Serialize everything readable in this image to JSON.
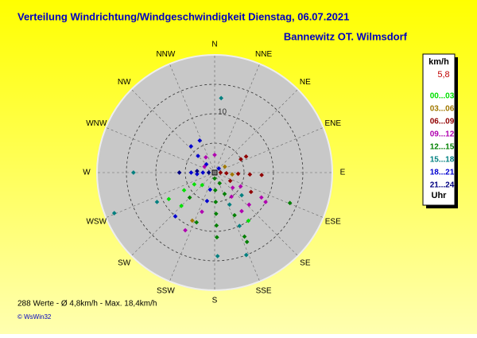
{
  "chart_data": {
    "type": "polar-scatter",
    "title": "Verteilung Windrichtung/Windgeschwindigkeit  Dienstag, 06.07.2021",
    "subtitle": "Bannewitz OT. Wilmsdorf",
    "directions": [
      "N",
      "NNE",
      "NE",
      "ENE",
      "E",
      "ESE",
      "SE",
      "SSE",
      "S",
      "SSW",
      "SW",
      "WSW",
      "W",
      "WNW",
      "NW",
      "NNW"
    ],
    "rlim": [
      0,
      20
    ],
    "rgrid": [
      5,
      10,
      15
    ],
    "rticks": [
      10
    ],
    "legend_title": "km/h",
    "current": "5,8",
    "legend_footer": "Uhr",
    "groups": [
      {
        "name": "00...03",
        "color": "#00e000"
      },
      {
        "name": "03...06",
        "color": "#a07800"
      },
      {
        "name": "06...09",
        "color": "#900000"
      },
      {
        "name": "09...12",
        "color": "#b000b0"
      },
      {
        "name": "12...15",
        "color": "#008000"
      },
      {
        "name": "15...18",
        "color": "#008080"
      },
      {
        "name": "18...21",
        "color": "#0000d0"
      },
      {
        "name": "21...24",
        "color": "#000080"
      }
    ],
    "points": [
      {
        "dir": 155,
        "speed": 2,
        "group": 4
      },
      {
        "dir": 155,
        "speed": 4,
        "group": 4
      },
      {
        "dir": 155,
        "speed": 6,
        "group": 5
      },
      {
        "dir": 155,
        "speed": 8,
        "group": 4
      },
      {
        "dir": 155,
        "speed": 10,
        "group": 5
      },
      {
        "dir": 155,
        "speed": 12,
        "group": 4
      },
      {
        "dir": 155,
        "speed": 13,
        "group": 4
      },
      {
        "dir": 159,
        "speed": 15,
        "group": 5
      },
      {
        "dir": 178,
        "speed": 3,
        "group": 4
      },
      {
        "dir": 178,
        "speed": 5,
        "group": 4
      },
      {
        "dir": 178,
        "speed": 7,
        "group": 4
      },
      {
        "dir": 178,
        "speed": 9,
        "group": 4
      },
      {
        "dir": 178,
        "speed": 11,
        "group": 4
      },
      {
        "dir": 178,
        "speed": 14.2,
        "group": 5
      },
      {
        "dir": 195,
        "speed": 3,
        "group": 6
      },
      {
        "dir": 195,
        "speed": 5,
        "group": 6
      },
      {
        "dir": 198,
        "speed": 7,
        "group": 3
      },
      {
        "dir": 200,
        "speed": 9,
        "group": 4
      },
      {
        "dir": 118,
        "speed": 3,
        "group": 2
      },
      {
        "dir": 118,
        "speed": 5,
        "group": 3
      },
      {
        "dir": 118,
        "speed": 7,
        "group": 2
      },
      {
        "dir": 118,
        "speed": 9,
        "group": 3
      },
      {
        "dir": 120,
        "speed": 10,
        "group": 3
      },
      {
        "dir": 112,
        "speed": 13.8,
        "group": 4
      },
      {
        "dir": 130,
        "speed": 4,
        "group": 3
      },
      {
        "dir": 130,
        "speed": 6,
        "group": 5
      },
      {
        "dir": 133,
        "speed": 8,
        "group": 3
      },
      {
        "dir": 93,
        "speed": 2,
        "group": 2
      },
      {
        "dir": 93,
        "speed": 4,
        "group": 2
      },
      {
        "dir": 93,
        "speed": 6,
        "group": 2
      },
      {
        "dir": 93,
        "speed": 8,
        "group": 2
      },
      {
        "dir": 96,
        "speed": 3,
        "group": 1
      },
      {
        "dir": 63,
        "speed": 5,
        "group": 2
      },
      {
        "dir": 63,
        "speed": 6,
        "group": 2
      },
      {
        "dir": 270,
        "speed": 2,
        "group": 6
      },
      {
        "dir": 270,
        "speed": 4,
        "group": 6
      },
      {
        "dir": 270,
        "speed": 6,
        "group": 7
      },
      {
        "dir": 270,
        "speed": 13.8,
        "group": 5
      },
      {
        "dir": 265,
        "speed": 3,
        "group": 6
      },
      {
        "dir": 275,
        "speed": 3,
        "group": 7
      },
      {
        "dir": 248,
        "speed": 18.4,
        "group": 5
      },
      {
        "dir": 240,
        "speed": 4,
        "group": 0
      },
      {
        "dir": 240,
        "speed": 6,
        "group": 0
      },
      {
        "dir": 240,
        "speed": 9,
        "group": 0
      },
      {
        "dir": 243,
        "speed": 11,
        "group": 5
      },
      {
        "dir": 225,
        "speed": 3,
        "group": 0
      },
      {
        "dir": 225,
        "speed": 6,
        "group": 4
      },
      {
        "dir": 225,
        "speed": 8,
        "group": 0
      },
      {
        "dir": 222,
        "speed": 10,
        "group": 6
      },
      {
        "dir": 315,
        "speed": 2,
        "group": 6
      },
      {
        "dir": 315,
        "speed": 4,
        "group": 6
      },
      {
        "dir": 318,
        "speed": 6,
        "group": 6
      },
      {
        "dir": 330,
        "speed": 3,
        "group": 3
      },
      {
        "dir": 335,
        "speed": 6,
        "group": 6
      },
      {
        "dir": 5,
        "speed": 12.7,
        "group": 5
      },
      {
        "dir": 0,
        "speed": 3,
        "group": 3
      },
      {
        "dir": 145,
        "speed": 5,
        "group": 3
      },
      {
        "dir": 145,
        "speed": 8,
        "group": 3
      },
      {
        "dir": 145,
        "speed": 10,
        "group": 0
      },
      {
        "dir": 207,
        "speed": 11,
        "group": 3
      },
      {
        "dir": 205,
        "speed": 9,
        "group": 1
      },
      {
        "dir": 45,
        "speed": 1,
        "group": 6
      },
      {
        "dir": 90,
        "speed": 1,
        "group": 2
      },
      {
        "dir": 180,
        "speed": 1,
        "group": 4
      },
      {
        "dir": 270,
        "speed": 1,
        "group": 7
      },
      {
        "dir": 300,
        "speed": 2,
        "group": 3
      },
      {
        "dir": 60,
        "speed": 2,
        "group": 1
      }
    ],
    "footer": "288 Werte  -  Ø 4,8km/h  -  Max. 18,4km/h",
    "copyright": "© WsWin32"
  }
}
